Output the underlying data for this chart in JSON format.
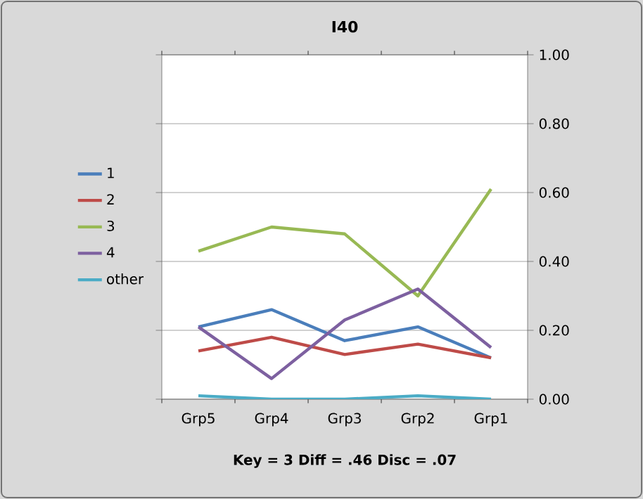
{
  "chart_data": {
    "type": "line",
    "title": "I40",
    "annotations": [
      "Key = 3    Diff = .46    Disc = .07"
    ],
    "categories": [
      "Grp5",
      "Grp4",
      "Grp3",
      "Grp2",
      "Grp1"
    ],
    "series": [
      {
        "name": "1",
        "color": "#4a7ebb",
        "values": [
          0.21,
          0.26,
          0.17,
          0.21,
          0.12
        ]
      },
      {
        "name": "2",
        "color": "#be4b48",
        "values": [
          0.14,
          0.18,
          0.13,
          0.16,
          0.12
        ]
      },
      {
        "name": "3",
        "color": "#98b954",
        "values": [
          0.43,
          0.5,
          0.48,
          0.3,
          0.61
        ]
      },
      {
        "name": "4",
        "color": "#7d60a0",
        "values": [
          0.21,
          0.06,
          0.23,
          0.32,
          0.15
        ]
      },
      {
        "name": "other",
        "color": "#4bacc6",
        "values": [
          0.01,
          0,
          0,
          0.01,
          0
        ]
      }
    ],
    "ylim": [
      0,
      1
    ],
    "yticks": [
      {
        "value": 0,
        "label": "0.00"
      },
      {
        "value": 0.2,
        "label": "0.20"
      },
      {
        "value": 0.4,
        "label": "0.40"
      },
      {
        "value": 0.6,
        "label": "0.60"
      },
      {
        "value": 0.8,
        "label": "0.80"
      },
      {
        "value": 1,
        "label": "1.00"
      }
    ],
    "grid": "y",
    "legend": "left",
    "marker": "none",
    "line_style": "solid"
  }
}
